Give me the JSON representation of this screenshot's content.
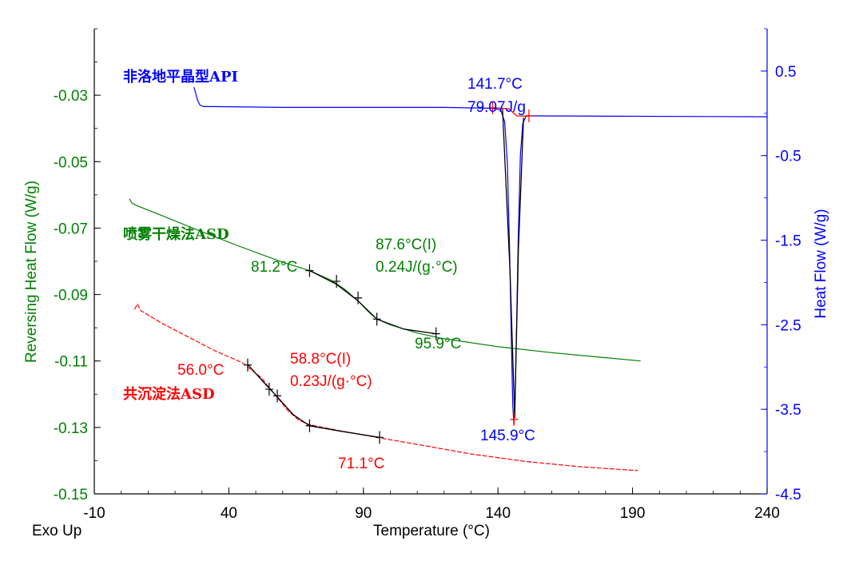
{
  "chart_data": {
    "type": "line",
    "xlabel": "Temperature (°C)",
    "ylabel_left": "Reversing Heat Flow (W/g)",
    "ylabel_right": "Heat Flow (W/g)",
    "corner_label": "Exo Up",
    "xlim": [
      -10,
      240
    ],
    "ylim_left": [
      -0.15,
      -0.01
    ],
    "ylim_right": [
      -4.5,
      1.0
    ],
    "x_ticks": [
      "-10",
      "40",
      "90",
      "140",
      "190",
      "240"
    ],
    "y_left_ticks": [
      "-0.03",
      "-0.05",
      "-0.07",
      "-0.09",
      "-0.11",
      "-0.13",
      "-0.15"
    ],
    "y_right_ticks": [
      "0.5",
      "-0.5",
      "-1.5",
      "-2.5",
      "-3.5",
      "-4.5"
    ],
    "colors": {
      "axis": "#000000",
      "left_axis": "#008000",
      "right_axis": "#0000ff",
      "api": "#0000ff",
      "spray": "#008000",
      "coprecip": "#ff0000",
      "tangent": "#000000",
      "integration": "#ff0000"
    },
    "series": [
      {
        "name": "非洛地平晶型API",
        "axis": "right",
        "color": "#0000ff",
        "points": [
          [
            27.0,
            0.31
          ],
          [
            27.6,
            0.25
          ],
          [
            28.3,
            0.16
          ],
          [
            29.2,
            0.1
          ],
          [
            30.5,
            0.08
          ],
          [
            34,
            0.08
          ],
          [
            60,
            0.07
          ],
          [
            90,
            0.07
          ],
          [
            120,
            0.07
          ],
          [
            138,
            0.06
          ],
          [
            141,
            0.04
          ],
          [
            142.5,
            -0.1
          ],
          [
            143.5,
            -0.6
          ],
          [
            144.3,
            -1.6
          ],
          [
            145,
            -2.7
          ],
          [
            145.5,
            -3.45
          ],
          [
            145.9,
            -3.68
          ],
          [
            146.3,
            -3.45
          ],
          [
            146.8,
            -2.7
          ],
          [
            147.5,
            -1.5
          ],
          [
            148.3,
            -0.5
          ],
          [
            149.2,
            -0.12
          ],
          [
            150.5,
            -0.03
          ],
          [
            155,
            -0.03
          ],
          [
            240,
            -0.04
          ]
        ]
      },
      {
        "name": "喷雾干燥法ASD",
        "axis": "left",
        "color": "#008000",
        "points": [
          [
            3.0,
            -0.0612
          ],
          [
            4.0,
            -0.0625
          ],
          [
            6.0,
            -0.0633
          ],
          [
            15,
            -0.0662
          ],
          [
            30,
            -0.0711
          ],
          [
            45,
            -0.0758
          ],
          [
            60,
            -0.0803
          ],
          [
            70,
            -0.0828
          ],
          [
            78,
            -0.0857
          ],
          [
            83,
            -0.0884
          ],
          [
            88,
            -0.0919
          ],
          [
            92,
            -0.0953
          ],
          [
            95,
            -0.0974
          ],
          [
            100,
            -0.0991
          ],
          [
            110,
            -0.1016
          ],
          [
            120,
            -0.1033
          ],
          [
            140,
            -0.1057
          ],
          [
            160,
            -0.1075
          ],
          [
            180,
            -0.109
          ],
          [
            193,
            -0.11
          ]
        ]
      },
      {
        "name": "共沉淀法ASD",
        "axis": "left",
        "color": "#ff0000",
        "points": [
          [
            5.0,
            -0.0945
          ],
          [
            6.0,
            -0.0928
          ],
          [
            7.2,
            -0.0948
          ],
          [
            15,
            -0.0986
          ],
          [
            25,
            -0.1028
          ],
          [
            35,
            -0.107
          ],
          [
            45,
            -0.1105
          ],
          [
            52,
            -0.115
          ],
          [
            57,
            -0.12
          ],
          [
            62,
            -0.125
          ],
          [
            66,
            -0.1278
          ],
          [
            70,
            -0.1292
          ],
          [
            80,
            -0.1308
          ],
          [
            95,
            -0.133
          ],
          [
            110,
            -0.1351
          ],
          [
            130,
            -0.138
          ],
          [
            150,
            -0.1402
          ],
          [
            170,
            -0.1418
          ],
          [
            192,
            -0.143
          ]
        ]
      }
    ],
    "annotations": {
      "api_label": "非洛地平晶型API",
      "api_onset": "141.7°C",
      "api_enthalpy": "79.07J/g",
      "api_peak": "145.9°C",
      "spray_label": "喷雾干燥法ASD",
      "spray_onset": "81.2°C",
      "spray_tg": "87.6°C(I)",
      "spray_dcp": "0.24J/(g·°C)",
      "spray_end": "95.9°C",
      "co_label": "共沉淀法ASD",
      "co_onset": "56.0°C",
      "co_tg": "58.8°C(I)",
      "co_dcp": "0.23J/(g·°C)",
      "co_end": "71.1°C"
    }
  }
}
